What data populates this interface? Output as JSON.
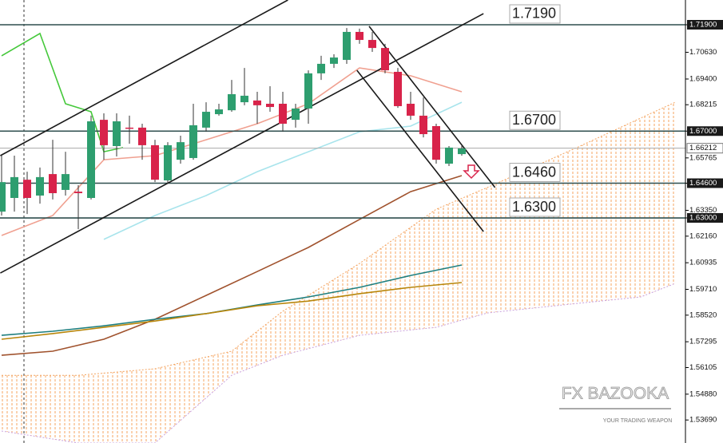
{
  "chart_data": {
    "type": "candlestick",
    "up_color": "#2e9e6f",
    "down_color": "#d8234a",
    "open": [
      1.6329,
      1.6392,
      1.6476,
      1.6403,
      1.6502,
      1.6429,
      1.6421,
      1.6392,
      1.6752,
      1.6631,
      1.6716,
      1.6716,
      1.6635,
      1.6473,
      1.6568,
      1.6576,
      1.6716,
      1.6778,
      1.6796,
      1.6833,
      1.6841,
      1.6826,
      1.6826,
      1.6752,
      1.6804,
      1.6966,
      1.701,
      1.7028,
      1.7157,
      1.712,
      1.7083,
      1.6973,
      1.6826,
      1.6771,
      1.6723,
      1.655,
      1.6594
    ],
    "high": [
      1.6587,
      1.6587,
      1.6513,
      1.6532,
      1.666,
      1.6605,
      1.6451,
      1.6771,
      1.6782,
      1.6782,
      1.6771,
      1.6734,
      1.666,
      1.6649,
      1.6679,
      1.6826,
      1.6833,
      1.6826,
      1.6936,
      1.6991,
      1.6881,
      1.6907,
      1.6881,
      1.6826,
      1.698,
      1.7047,
      1.7054,
      1.7175,
      1.7172,
      1.7157,
      1.7102,
      1.6991,
      1.6881,
      1.6855,
      1.6734,
      1.6631,
      1.6635
    ],
    "low": [
      1.6311,
      1.6329,
      1.6318,
      1.6366,
      1.6385,
      1.6403,
      1.6248,
      1.6385,
      1.6568,
      1.6583,
      1.6642,
      1.6568,
      1.6465,
      1.6458,
      1.655,
      1.6568,
      1.6697,
      1.6771,
      1.6789,
      1.6819,
      1.6734,
      1.6789,
      1.6697,
      1.6716,
      1.6734,
      1.6936,
      1.6991,
      1.701,
      1.7102,
      1.7065,
      1.6966,
      1.6807,
      1.6752,
      1.6671,
      1.655,
      1.6539,
      1.6587
    ],
    "close": [
      1.6465,
      1.6488,
      1.6392,
      1.6488,
      1.6414,
      1.6502,
      1.6414,
      1.6745,
      1.6635,
      1.6745,
      1.6712,
      1.6635,
      1.6476,
      1.6635,
      1.6649,
      1.6727,
      1.6789,
      1.68,
      1.687,
      1.6863,
      1.6819,
      1.6811,
      1.6734,
      1.6804,
      1.6966,
      1.701,
      1.7039,
      1.7157,
      1.712,
      1.7083,
      1.698,
      1.6815,
      1.6771,
      1.6686,
      1.6568,
      1.6624,
      1.662
    ],
    "ylim": [
      1.5263,
      1.7304
    ],
    "yticks": [
      {
        "value": 1.719,
        "label": "1.71900"
      },
      {
        "value": 1.7063,
        "label": "1.70630"
      },
      {
        "value": 1.694,
        "label": "1.69400"
      },
      {
        "value": 1.68215,
        "label": "1.68215"
      },
      {
        "value": 1.67,
        "label": "1.67000"
      },
      {
        "value": 1.65765,
        "label": "1.65765"
      },
      {
        "value": 1.646,
        "label": "1.64600"
      },
      {
        "value": 1.6335,
        "label": "1.63350"
      },
      {
        "value": 1.63,
        "label": "1.63000"
      },
      {
        "value": 1.6216,
        "label": "1.62160"
      },
      {
        "value": 1.60935,
        "label": "1.60935"
      },
      {
        "value": 1.5971,
        "label": "1.59710"
      },
      {
        "value": 1.5852,
        "label": "1.58520"
      },
      {
        "value": 1.57295,
        "label": "1.57295"
      },
      {
        "value": 1.56105,
        "label": "1.56105"
      },
      {
        "value": 1.5488,
        "label": "1.54880"
      },
      {
        "value": 1.5369,
        "label": "1.53690"
      }
    ],
    "levels": [
      {
        "value": 1.719,
        "label": "1.7190"
      },
      {
        "value": 1.67,
        "label": "1.6700"
      },
      {
        "value": 1.646,
        "label": "1.6460"
      },
      {
        "value": 1.63,
        "label": "1.6300"
      }
    ],
    "level_color": "#2f4f4f",
    "current": {
      "value": 1.66212,
      "label": "1.66212"
    },
    "overlays": [
      {
        "color": "#a0522d",
        "x": [
          0,
          4,
          8,
          12,
          16,
          20,
          24,
          28,
          32,
          36
        ],
        "values": [
          1.5667,
          1.5686,
          1.5741,
          1.5833,
          1.5943,
          1.6053,
          1.6164,
          1.6293,
          1.6421,
          1.6495
        ]
      },
      {
        "color": "#1f7f7f",
        "x": [
          0,
          4,
          8,
          12,
          16,
          20,
          24,
          28,
          32,
          36
        ],
        "values": [
          1.5759,
          1.5778,
          1.5803,
          1.5833,
          1.5859,
          1.5899,
          1.5936,
          1.598,
          1.6035,
          1.6083
        ]
      },
      {
        "color": "#b8860b",
        "x": [
          0,
          4,
          8,
          12,
          16,
          20,
          24,
          28,
          32,
          36
        ],
        "values": [
          1.5741,
          1.5767,
          1.5796,
          1.5825,
          1.5859,
          1.5895,
          1.5917,
          1.5951,
          1.598,
          1.6002
        ]
      },
      {
        "color": "#a8e4ec",
        "x": [
          8,
          12,
          16,
          20,
          24,
          28,
          32,
          36
        ],
        "values": [
          1.6201,
          1.6311,
          1.6403,
          1.6513,
          1.6605,
          1.6697,
          1.6723,
          1.6833
        ]
      },
      {
        "color": "#f0a090",
        "x": [
          0,
          4,
          8,
          12,
          16,
          20,
          24,
          28,
          32,
          36
        ],
        "values": [
          1.6219,
          1.6311,
          1.6568,
          1.6587,
          1.666,
          1.6734,
          1.6826,
          1.6991,
          1.6955,
          1.6881
        ]
      },
      {
        "color": "#44c83a",
        "x": [
          0,
          3,
          5,
          7,
          8,
          9.5
        ],
        "values": [
          1.7047,
          1.715,
          1.6826,
          1.6789,
          1.6605,
          1.6624
        ]
      }
    ],
    "cloud": {
      "color": "#f4a460",
      "x": [
        0,
        6,
        12,
        18,
        22,
        28,
        34,
        38,
        45,
        50,
        52.7
      ],
      "upper": [
        1.5575,
        1.5575,
        1.5605,
        1.5686,
        1.587,
        1.609,
        1.634,
        1.644,
        1.6624,
        1.676,
        1.6833
      ],
      "lower": [
        1.5318,
        1.5263,
        1.5263,
        1.5575,
        1.5667,
        1.5759,
        1.5796,
        1.5862,
        1.5906,
        1.5936,
        1.5998
      ]
    },
    "trendlines": [
      {
        "color": "#1a1a1a",
        "x": [
          -0.1,
          22.4
        ],
        "values": [
          1.6587,
          1.7304
        ]
      },
      {
        "color": "#1a1a1a",
        "x": [
          -0.1,
          37.7
        ],
        "values": [
          1.6046,
          1.7241
        ]
      },
      {
        "color": "#1a1a1a",
        "x": [
          28.75,
          38.6
        ],
        "values": [
          1.7183,
          1.644
        ]
      },
      {
        "color": "#1a1a1a",
        "x": [
          27.8,
          37.7
        ],
        "values": [
          1.698,
          1.6237
        ]
      }
    ]
  },
  "logo": {
    "title": "FX BAZOOKA",
    "tagline": "YOUR TRADING WEAPON"
  }
}
